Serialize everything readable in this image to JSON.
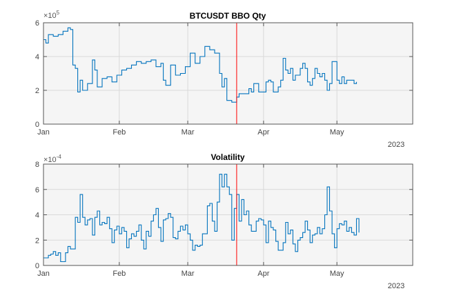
{
  "chart_data": [
    {
      "type": "line",
      "title": "BTCUSDT BBO Qty",
      "xlabel": "",
      "ylabel": "",
      "y_exponent_label": "×10",
      "y_exponent": "5",
      "year_label": "2023",
      "xlim": [
        "2023-01-01",
        "2023-06-01"
      ],
      "ylim": [
        0,
        6
      ],
      "y_scale_multiplier": 100000,
      "yticks": [
        "0",
        "2",
        "4",
        "6"
      ],
      "xticks": [
        {
          "date": "2023-01-01",
          "label": "Jan"
        },
        {
          "date": "2023-02-01",
          "label": "Feb"
        },
        {
          "date": "2023-03-01",
          "label": "Mar"
        },
        {
          "date": "2023-04-01",
          "label": "Apr"
        },
        {
          "date": "2023-05-01",
          "label": "May"
        }
      ],
      "grid": true,
      "line_color": "#0072BD",
      "marker_line": {
        "date": "2023-03-21",
        "color": "#FF0000"
      },
      "series": [
        {
          "x": [
            "2023-01-01",
            "2023-01-02",
            "2023-01-03",
            "2023-01-05",
            "2023-01-07",
            "2023-01-09",
            "2023-01-11",
            "2023-01-12",
            "2023-01-13",
            "2023-01-14",
            "2023-01-15",
            "2023-01-16",
            "2023-01-17",
            "2023-01-19",
            "2023-01-21",
            "2023-01-22",
            "2023-01-23",
            "2023-01-25",
            "2023-01-27",
            "2023-01-29",
            "2023-01-31",
            "2023-02-02",
            "2023-02-04",
            "2023-02-06",
            "2023-02-08",
            "2023-02-10",
            "2023-02-12",
            "2023-02-14",
            "2023-02-16",
            "2023-02-18",
            "2023-02-19",
            "2023-02-20",
            "2023-02-22",
            "2023-02-24",
            "2023-02-26",
            "2023-02-28",
            "2023-03-02",
            "2023-03-04",
            "2023-03-06",
            "2023-03-08",
            "2023-03-10",
            "2023-03-12",
            "2023-03-14",
            "2023-03-15",
            "2023-03-16",
            "2023-03-17",
            "2023-03-19",
            "2023-03-21",
            "2023-03-22",
            "2023-03-24",
            "2023-03-26",
            "2023-03-27",
            "2023-03-28",
            "2023-03-30",
            "2023-04-01",
            "2023-04-02",
            "2023-04-03",
            "2023-04-04",
            "2023-04-05",
            "2023-04-07",
            "2023-04-08",
            "2023-04-09",
            "2023-04-10",
            "2023-04-11",
            "2023-04-12",
            "2023-04-13",
            "2023-04-14",
            "2023-04-16",
            "2023-04-17",
            "2023-04-18",
            "2023-04-19",
            "2023-04-20",
            "2023-04-21",
            "2023-04-22",
            "2023-04-23",
            "2023-04-24",
            "2023-04-25",
            "2023-04-26",
            "2023-04-27",
            "2023-04-28",
            "2023-04-29",
            "2023-05-01",
            "2023-05-02",
            "2023-05-03",
            "2023-05-04",
            "2023-05-05",
            "2023-05-06",
            "2023-05-07",
            "2023-05-08",
            "2023-05-09"
          ],
          "y": [
            5.0,
            4.8,
            5.3,
            5.2,
            5.3,
            5.5,
            5.7,
            5.6,
            3.5,
            3.3,
            1.9,
            2.6,
            2.0,
            2.4,
            3.8,
            3.2,
            2.2,
            2.7,
            2.8,
            2.5,
            2.9,
            3.2,
            3.3,
            3.5,
            3.7,
            3.6,
            3.7,
            3.8,
            3.4,
            3.6,
            2.6,
            2.3,
            3.5,
            2.9,
            3.0,
            3.4,
            4.2,
            3.6,
            4.0,
            4.6,
            4.4,
            4.2,
            3.0,
            2.2,
            2.7,
            1.4,
            1.3,
            1.6,
            1.8,
            1.8,
            2.1,
            1.9,
            2.4,
            1.9,
            1.9,
            2.5,
            2.6,
            2.5,
            1.9,
            2.2,
            2.6,
            3.9,
            3.2,
            3.0,
            3.3,
            2.6,
            2.9,
            3.3,
            3.6,
            3.3,
            2.5,
            2.3,
            2.7,
            3.3,
            3.0,
            2.8,
            3.0,
            2.6,
            2.0,
            2.4,
            3.7,
            2.6,
            2.4,
            2.8,
            2.4,
            2.6,
            2.6,
            2.6,
            2.4,
            2.5
          ]
        }
      ]
    },
    {
      "type": "line",
      "title": "Volatility",
      "xlabel": "",
      "ylabel": "",
      "y_exponent_label": "×10",
      "y_exponent": "-4",
      "year_label": "2023",
      "xlim": [
        "2023-01-01",
        "2023-06-01"
      ],
      "ylim": [
        0,
        8
      ],
      "y_scale_multiplier": 0.0001,
      "yticks": [
        "0",
        "2",
        "4",
        "6",
        "8"
      ],
      "xticks": [
        {
          "date": "2023-01-01",
          "label": "Jan"
        },
        {
          "date": "2023-02-01",
          "label": "Feb"
        },
        {
          "date": "2023-03-01",
          "label": "Mar"
        },
        {
          "date": "2023-04-01",
          "label": "Apr"
        },
        {
          "date": "2023-05-01",
          "label": "May"
        }
      ],
      "grid": true,
      "line_color": "#0072BD",
      "marker_line": {
        "date": "2023-03-21",
        "color": "#FF0000"
      },
      "series": [
        {
          "x_start": "2023-01-01",
          "x_step_days": 1,
          "y": [
            0.6,
            0.6,
            0.8,
            0.9,
            1.1,
            0.8,
            1.0,
            0.3,
            0.3,
            1.0,
            1.5,
            1.3,
            1.3,
            3.8,
            3.4,
            5.6,
            3.8,
            3.2,
            3.6,
            3.7,
            2.4,
            3.8,
            4.3,
            3.2,
            3.4,
            3.3,
            3.8,
            2.9,
            1.8,
            2.8,
            3.1,
            2.5,
            3.0,
            2.7,
            1.4,
            2.1,
            2.5,
            2.3,
            2.7,
            3.2,
            2.0,
            1.3,
            2.7,
            2.3,
            3.5,
            4.0,
            4.5,
            3.0,
            1.9,
            3.6,
            3.7,
            4.1,
            3.8,
            2.2,
            2.1,
            2.7,
            3.1,
            2.8,
            3.2,
            2.5,
            2.0,
            1.2,
            1.6,
            1.5,
            1.6,
            2.5,
            2.5,
            4.7,
            4.9,
            3.5,
            2.7,
            5.0,
            7.2,
            6.2,
            7.2,
            6.2,
            5.6,
            2.0,
            4.5,
            5.6,
            3.5,
            5.2,
            4.0,
            4.3,
            3.2,
            2.7,
            2.7,
            3.5,
            3.7,
            3.6,
            3.2,
            1.8,
            3.5,
            3.0,
            2.8,
            1.9,
            1.2,
            1.2,
            1.8,
            3.4,
            2.5,
            2.8,
            1.7,
            1.1,
            2.0,
            2.2,
            2.6,
            3.5,
            2.8,
            1.8,
            2.4,
            2.5,
            3.0,
            2.5,
            2.9,
            4.0,
            6.2,
            4.3,
            2.5,
            1.4,
            2.9,
            3.3,
            3.2,
            3.5,
            2.7,
            3.0,
            2.6,
            2.4,
            3.7,
            2.6
          ]
        }
      ]
    }
  ]
}
